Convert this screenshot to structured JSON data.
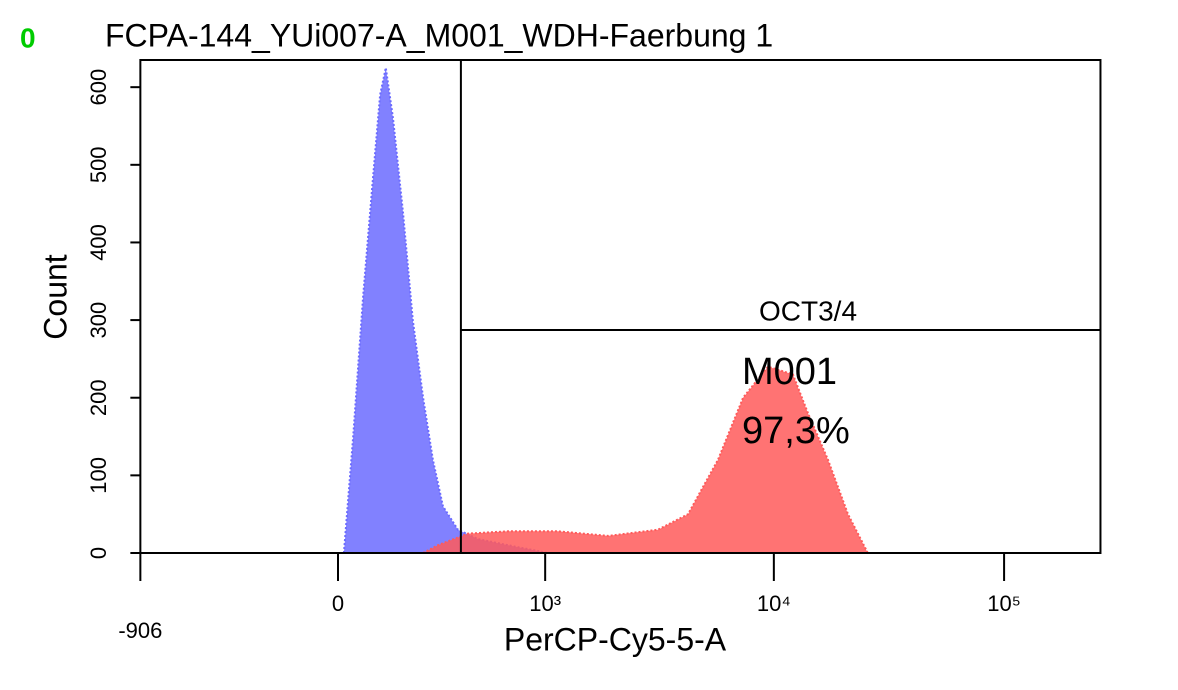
{
  "chart_data": {
    "type": "histogram-overlay",
    "corner_label": "0",
    "title": "FCPA-144_YUi007-A_M001_WDH-Faerbung 1",
    "xlabel": "PerCP-Cy5-5-A",
    "ylabel": "Count",
    "xscale": "biexponential",
    "xlim": [
      -906,
      262144
    ],
    "xticks": [
      -906,
      0,
      {
        "value": 1000,
        "label": "10³"
      },
      {
        "value": 10000,
        "label": "10⁴"
      },
      {
        "value": 100000,
        "label": "10⁵"
      }
    ],
    "ylim": [
      0,
      635
    ],
    "yticks": [
      0,
      100,
      200,
      300,
      400,
      500,
      600
    ],
    "series": [
      {
        "color": "#6b6bff",
        "x": [
          15,
          39,
          65,
          91,
          111,
          127,
          148,
          178,
          210,
          245,
          281,
          321,
          386,
          487,
          677,
          1029
        ],
        "values": [
          0,
          150,
          330,
          480,
          590,
          625,
          560,
          440,
          300,
          200,
          120,
          60,
          30,
          18,
          10,
          0
        ]
      },
      {
        "color": "#ff5a5a",
        "x": [
          245,
          301,
          435,
          677,
          1141,
          1897,
          3136,
          4234,
          5721,
          7350,
          9430,
          12100,
          14070,
          17180,
          20990,
          25600
        ],
        "values": [
          0,
          10,
          25,
          28,
          28,
          22,
          30,
          50,
          120,
          200,
          240,
          230,
          180,
          120,
          50,
          0
        ]
      }
    ],
    "gate": {
      "label": "OCT3/4",
      "range": [
        400,
        262144
      ]
    },
    "annotations": [
      "M001",
      "97,3%"
    ]
  }
}
